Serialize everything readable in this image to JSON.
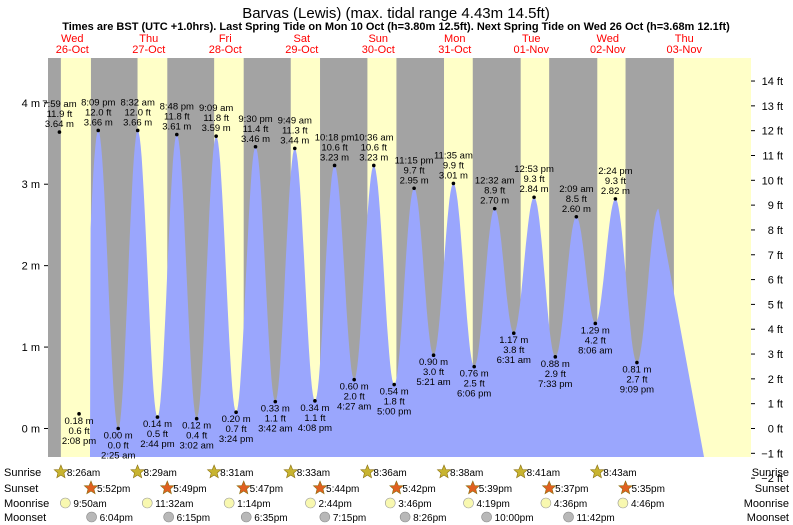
{
  "chart_data": {
    "type": "area",
    "title": "Barvas (Lewis) (max. tidal range 4.43m 14.5ft)",
    "subtitle": "Times are BST (UTC +1.0hrs). Last Spring Tide on Mon 10 Oct (h=3.80m 12.5ft). Next Spring Tide on Wed 26 Oct (h=3.68m 12.1ft)",
    "ylim_m": [
      -0.35,
      4.55
    ],
    "y_ticks_m": [
      0,
      1,
      2,
      3,
      4
    ],
    "y_tick_labels_m": [
      "0 m",
      "1 m",
      "2 m",
      "3 m",
      "4 m"
    ],
    "y_ticks_ft": [
      -2,
      -1,
      0,
      1,
      2,
      3,
      4,
      5,
      6,
      7,
      8,
      9,
      10,
      11,
      12,
      13,
      14
    ],
    "y_tick_labels_ft": [
      "−2 ft",
      "−1 ft",
      "0 ft",
      "1 ft",
      "2 ft",
      "3 ft",
      "4 ft",
      "5 ft",
      "6 ft",
      "7 ft",
      "8 ft",
      "9 ft",
      "10 ft",
      "11 ft",
      "12 ft",
      "13 ft",
      "14 ft"
    ],
    "days": [
      {
        "dow": "Wed",
        "date": "26-Oct"
      },
      {
        "dow": "Thu",
        "date": "27-Oct"
      },
      {
        "dow": "Fri",
        "date": "28-Oct"
      },
      {
        "dow": "Sat",
        "date": "29-Oct"
      },
      {
        "dow": "Sun",
        "date": "30-Oct"
      },
      {
        "dow": "Mon",
        "date": "31-Oct"
      },
      {
        "dow": "Tue",
        "date": "01-Nov"
      },
      {
        "dow": "Wed",
        "date": "02-Nov"
      },
      {
        "dow": "Thu",
        "date": "03-Nov"
      }
    ],
    "daylight": [
      [
        "8:26am",
        "5:52pm"
      ],
      [
        "8:29am",
        "5:49pm"
      ],
      [
        "8:31am",
        "5:47pm"
      ],
      [
        "8:33am",
        "5:44pm"
      ],
      [
        "8:36am",
        "5:42pm"
      ],
      [
        "8:38am",
        "5:39pm"
      ],
      [
        "8:41am",
        "5:37pm"
      ],
      [
        "8:43am",
        "5:35pm"
      ]
    ],
    "tides": [
      {
        "time": "7:59 am",
        "m": 3.64,
        "ft": "11.9 ft",
        "m_label": "3.64 m",
        "type": "high",
        "day": 0
      },
      {
        "time": "2:08 pm",
        "m": 0.18,
        "ft": "0.6 ft",
        "m_label": "0.18 m",
        "type": "low",
        "day": 0
      },
      {
        "time": "8:09 pm",
        "m": 3.66,
        "ft": "12.0 ft",
        "m_label": "3.66 m",
        "type": "high",
        "day": 0
      },
      {
        "time": "2:25 am",
        "m": 0.0,
        "ft": "0.0 ft",
        "m_label": "0.00 m",
        "type": "low",
        "day": 1
      },
      {
        "time": "8:32 am",
        "m": 3.66,
        "ft": "12.0 ft",
        "m_label": "3.66 m",
        "type": "high",
        "day": 1
      },
      {
        "time": "2:44 pm",
        "m": 0.14,
        "ft": "0.5 ft",
        "m_label": "0.14 m",
        "type": "low",
        "day": 1
      },
      {
        "time": "8:48 pm",
        "m": 3.61,
        "ft": "11.8 ft",
        "m_label": "3.61 m",
        "type": "high",
        "day": 1
      },
      {
        "time": "3:02 am",
        "m": 0.12,
        "ft": "0.4 ft",
        "m_label": "0.12 m",
        "type": "low",
        "day": 2
      },
      {
        "time": "9:09 am",
        "m": 3.59,
        "ft": "11.8 ft",
        "m_label": "3.59 m",
        "type": "high",
        "day": 2
      },
      {
        "time": "3:24 pm",
        "m": 0.2,
        "ft": "0.7 ft",
        "m_label": "0.20 m",
        "type": "low",
        "day": 2
      },
      {
        "time": "9:30 pm",
        "m": 3.46,
        "ft": "11.4 ft",
        "m_label": "3.46 m",
        "type": "high",
        "day": 2
      },
      {
        "time": "3:42 am",
        "m": 0.33,
        "ft": "1.1 ft",
        "m_label": "0.33 m",
        "type": "low",
        "day": 3
      },
      {
        "time": "9:49 am",
        "m": 3.44,
        "ft": "11.3 ft",
        "m_label": "3.44 m",
        "type": "high",
        "day": 3
      },
      {
        "time": "4:08 pm",
        "m": 0.34,
        "ft": "1.1 ft",
        "m_label": "0.34 m",
        "type": "low",
        "day": 3
      },
      {
        "time": "10:18 pm",
        "m": 3.23,
        "ft": "10.6 ft",
        "m_label": "3.23 m",
        "type": "high",
        "day": 3
      },
      {
        "time": "4:27 am",
        "m": 0.6,
        "ft": "2.0 ft",
        "m_label": "0.60 m",
        "type": "low",
        "day": 4
      },
      {
        "time": "10:36 am",
        "m": 3.23,
        "ft": "10.6 ft",
        "m_label": "3.23 m",
        "type": "high",
        "day": 4
      },
      {
        "time": "5:00 pm",
        "m": 0.54,
        "ft": "1.8 ft",
        "m_label": "0.54 m",
        "type": "low",
        "day": 4
      },
      {
        "time": "11:15 pm",
        "m": 2.95,
        "ft": "9.7 ft",
        "m_label": "2.95 m",
        "type": "high",
        "day": 4
      },
      {
        "time": "5:21 am",
        "m": 0.9,
        "ft": "3.0 ft",
        "m_label": "0.90 m",
        "type": "low",
        "day": 5
      },
      {
        "time": "11:35 am",
        "m": 3.01,
        "ft": "9.9 ft",
        "m_label": "3.01 m",
        "type": "high",
        "day": 5
      },
      {
        "time": "6:06 pm",
        "m": 0.76,
        "ft": "2.5 ft",
        "m_label": "0.76 m",
        "type": "low",
        "day": 5
      },
      {
        "time": "12:32 am",
        "m": 2.7,
        "ft": "8.9 ft",
        "m_label": "2.70 m",
        "type": "high",
        "day": 6
      },
      {
        "time": "6:31 am",
        "m": 1.17,
        "ft": "3.8 ft",
        "m_label": "1.17 m",
        "type": "low",
        "day": 6
      },
      {
        "time": "12:53 pm",
        "m": 2.84,
        "ft": "9.3 ft",
        "m_label": "2.84 m",
        "type": "high",
        "day": 6
      },
      {
        "time": "7:33 pm",
        "m": 0.88,
        "ft": "2.9 ft",
        "m_label": "0.88 m",
        "type": "low",
        "day": 6
      },
      {
        "time": "2:09 am",
        "m": 2.6,
        "ft": "8.5 ft",
        "m_label": "2.60 m",
        "type": "high",
        "day": 7
      },
      {
        "time": "8:06 am",
        "m": 1.29,
        "ft": "4.2 ft",
        "m_label": "1.29 m",
        "type": "low",
        "day": 7
      },
      {
        "time": "2:24 pm",
        "m": 2.82,
        "ft": "9.3 ft",
        "m_label": "2.82 m",
        "type": "high",
        "day": 7
      },
      {
        "time": "9:09 pm",
        "m": 0.81,
        "ft": "2.7 ft",
        "m_label": "0.81 m",
        "type": "low",
        "day": 7
      }
    ],
    "footer": {
      "row_labels": [
        "Sunrise",
        "Sunset",
        "Moonrise",
        "Moonset"
      ],
      "moonrise": [
        "9:50am",
        "11:32am",
        "1:14pm",
        "2:44pm",
        "3:46pm",
        "4:19pm",
        "4:36pm",
        "4:46pm"
      ],
      "moonset": [
        "6:04pm",
        "6:15pm",
        "6:35pm",
        "7:15pm",
        "8:26pm",
        "10:00pm",
        "11:42pm",
        ""
      ]
    },
    "colors": {
      "night": "#a3a3a3",
      "day": "#ffffc8",
      "water": "#9aa6fd",
      "day_header": "#ff0000",
      "sun_star": "#c8b430",
      "sunset_star": "#e06020",
      "moon": "#f8f8b0",
      "moonset": "#b8b8b8"
    }
  }
}
